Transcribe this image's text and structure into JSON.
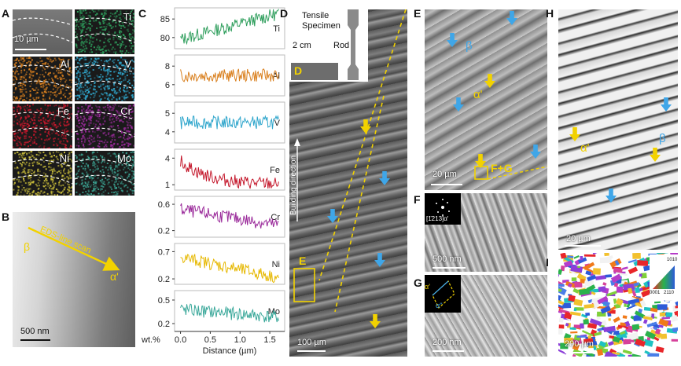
{
  "panels": {
    "A": {
      "label": "A",
      "scale": "10 µm",
      "maps": [
        "Ti",
        "Al",
        "V",
        "Fe",
        "Cr",
        "Ni",
        "Mo"
      ],
      "colors": {
        "Ti": "#2e9e5c",
        "Al": "#d9801f",
        "V": "#2fa6cc",
        "Fe": "#c4182c",
        "Cr": "#9a2a9a",
        "Ni": "#c9bd3a",
        "Mo": "#3a9e8e"
      }
    },
    "B": {
      "label": "B",
      "beta": "β",
      "alpha_prime": "α'",
      "scan_label": "EDS-line scan",
      "scale": "500 nm"
    },
    "C": {
      "label": "C",
      "unit_label": "wt.%",
      "xlabel": "Distance (µm)"
    },
    "D": {
      "label": "D",
      "specimen_label": "Tensile Specimen",
      "rod_label": "Rod",
      "size_label": "2 cm",
      "inset_letter": "D",
      "region_label": "E",
      "build_direction": "Building direction",
      "scale": "100 µm"
    },
    "E": {
      "label": "E",
      "beta": "β",
      "alpha_prime": "α'",
      "fg_label": "F+G",
      "scale": "20 µm"
    },
    "F": {
      "label": "F",
      "zone_axis": "[1̄213]α'",
      "scale": "500 nm"
    },
    "G": {
      "label": "G",
      "alpha_prime": "α'",
      "alpha_double": "α''",
      "scale": "200 nm"
    },
    "H": {
      "label": "H",
      "beta": "β",
      "alpha_prime": "α'",
      "scale": "20 µm"
    },
    "I": {
      "label": "I",
      "scale": "200 µm",
      "legend": [
        "0001",
        "2110",
        "1010"
      ]
    }
  },
  "chart_data": [
    {
      "type": "line",
      "title": "",
      "series": [
        {
          "name": "Ti",
          "color": "#2e9e5c"
        }
      ],
      "y_ticks": [
        80,
        85
      ],
      "ylim": [
        77,
        88
      ],
      "x_ticks": [
        0.0,
        0.5,
        1.0,
        1.5
      ],
      "xlim": [
        -0.1,
        1.75
      ],
      "trend": [
        79.5,
        86.5
      ]
    },
    {
      "type": "line",
      "title": "",
      "series": [
        {
          "name": "Al",
          "color": "#d9801f"
        }
      ],
      "y_ticks": [
        6,
        8
      ],
      "ylim": [
        4.8,
        9.2
      ],
      "x_ticks": [
        0.0,
        0.5,
        1.0,
        1.5
      ],
      "xlim": [
        -0.1,
        1.75
      ],
      "trend": [
        7.0,
        7.0
      ]
    },
    {
      "type": "line",
      "title": "",
      "series": [
        {
          "name": "V",
          "color": "#2fa6cc"
        }
      ],
      "y_ticks": [
        4,
        5
      ],
      "ylim": [
        3.4,
        5.6
      ],
      "x_ticks": [
        0.0,
        0.5,
        1.0,
        1.5
      ],
      "xlim": [
        -0.1,
        1.75
      ],
      "trend": [
        4.5,
        4.5
      ]
    },
    {
      "type": "line",
      "title": "",
      "series": [
        {
          "name": "Fe",
          "color": "#c4182c"
        }
      ],
      "y_ticks": [
        1,
        4
      ],
      "ylim": [
        0.4,
        5.0
      ],
      "x_ticks": [
        0.0,
        0.5,
        1.0,
        1.5
      ],
      "xlim": [
        -0.1,
        1.75
      ],
      "trend": [
        3.7,
        1.1
      ]
    },
    {
      "type": "line",
      "title": "",
      "series": [
        {
          "name": "Cr",
          "color": "#9a2a9a"
        }
      ],
      "y_ticks": [
        0.2,
        0.6
      ],
      "ylim": [
        0.1,
        0.72
      ],
      "x_ticks": [
        0.0,
        0.5,
        1.0,
        1.5
      ],
      "xlim": [
        -0.1,
        1.75
      ],
      "trend": [
        0.52,
        0.28
      ]
    },
    {
      "type": "line",
      "title": "",
      "series": [
        {
          "name": "Ni",
          "color": "#e6b800"
        }
      ],
      "y_ticks": [
        0.2,
        0.7
      ],
      "ylim": [
        0.1,
        0.85
      ],
      "x_ticks": [
        0.0,
        0.5,
        1.0,
        1.5
      ],
      "xlim": [
        -0.1,
        1.75
      ],
      "trend": [
        0.6,
        0.22
      ]
    },
    {
      "type": "line",
      "title": "",
      "series": [
        {
          "name": "Mo",
          "color": "#3aa89a"
        }
      ],
      "y_ticks": [
        0.2,
        0.5
      ],
      "ylim": [
        0.1,
        0.62
      ],
      "x_ticks": [
        0.0,
        0.5,
        1.0,
        1.5
      ],
      "xlim": [
        -0.1,
        1.75
      ],
      "trend": [
        0.38,
        0.28
      ]
    }
  ]
}
